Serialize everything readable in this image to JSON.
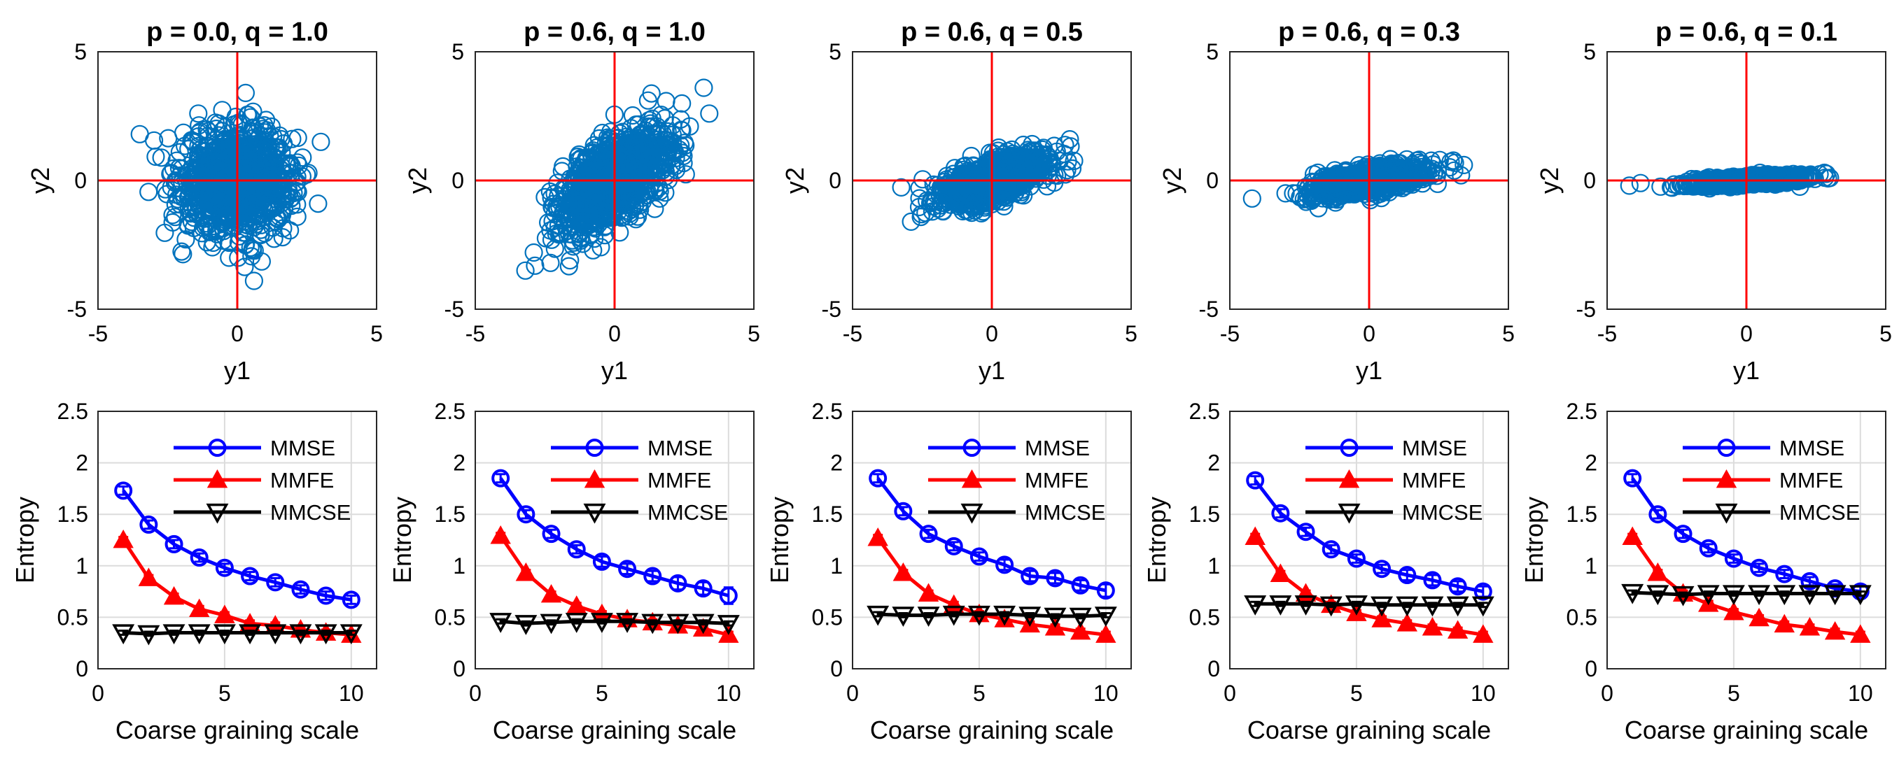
{
  "colors": {
    "mmse": "#0000ff",
    "mmfe": "#ff0000",
    "mmcse": "#000000",
    "scatter": "#0072bd",
    "crosshair": "#ff0000"
  },
  "chart_data": [
    {
      "type": "scatter",
      "title": "p = 0.0, q = 1.0",
      "xlabel": "y1",
      "ylabel": "y2",
      "xlim": [
        -5,
        5
      ],
      "ylim": [
        -5,
        5
      ],
      "xticks": [
        "-5",
        "0",
        "5"
      ],
      "yticks": [
        "-5",
        "0",
        "5"
      ],
      "p": 0.0,
      "q": 1.0,
      "n_points": 1000,
      "crosshair_at": [
        0,
        0
      ],
      "outliers": [
        [
          -3.5,
          1.8
        ],
        [
          0.3,
          3.4
        ],
        [
          0.6,
          -3.9
        ],
        [
          -1.4,
          2.6
        ],
        [
          3.0,
          1.5
        ],
        [
          2.9,
          -0.9
        ]
      ]
    },
    {
      "type": "scatter",
      "title": "p = 0.6, q = 1.0",
      "xlabel": "y1",
      "ylabel": "y2",
      "xlim": [
        -5,
        5
      ],
      "ylim": [
        -5,
        5
      ],
      "xticks": [
        "-5",
        "0",
        "5"
      ],
      "yticks": [
        "-5",
        "0",
        "5"
      ],
      "p": 0.6,
      "q": 1.0,
      "n_points": 1000,
      "crosshair_at": [
        0,
        0
      ],
      "outliers": [
        [
          -3.2,
          -3.5
        ],
        [
          -2.9,
          -2.8
        ],
        [
          -2.3,
          -3.2
        ],
        [
          3.2,
          3.6
        ],
        [
          3.4,
          2.6
        ],
        [
          2.7,
          2.1
        ]
      ]
    },
    {
      "type": "scatter",
      "title": "p = 0.6, q = 0.5",
      "xlabel": "y1",
      "ylabel": "y2",
      "xlim": [
        -5,
        5
      ],
      "ylim": [
        -5,
        5
      ],
      "xticks": [
        "-5",
        "0",
        "5"
      ],
      "yticks": [
        "-5",
        "0",
        "5"
      ],
      "p": 0.6,
      "q": 0.5,
      "n_points": 1000,
      "crosshair_at": [
        0,
        0
      ],
      "outliers": [
        [
          -2.9,
          -1.6
        ],
        [
          -2.6,
          -0.3
        ],
        [
          2.8,
          1.6
        ],
        [
          2.7,
          0.4
        ]
      ]
    },
    {
      "type": "scatter",
      "title": "p = 0.6, q = 0.3",
      "xlabel": "y1",
      "ylabel": "y2",
      "xlim": [
        -5,
        5
      ],
      "ylim": [
        -5,
        5
      ],
      "xticks": [
        "-5",
        "0",
        "5"
      ],
      "yticks": [
        "-5",
        "0",
        "5"
      ],
      "p": 0.6,
      "q": 0.3,
      "n_points": 1000,
      "crosshair_at": [
        0,
        0
      ],
      "outliers": [
        [
          -4.2,
          -0.7
        ],
        [
          3.4,
          0.6
        ],
        [
          3.3,
          0.2
        ],
        [
          -3.0,
          -0.5
        ]
      ]
    },
    {
      "type": "scatter",
      "title": "p = 0.6, q = 0.1",
      "xlabel": "y1",
      "ylabel": "y2",
      "xlim": [
        -5,
        5
      ],
      "ylim": [
        -5,
        5
      ],
      "xticks": [
        "-5",
        "0",
        "5"
      ],
      "yticks": [
        "-5",
        "0",
        "5"
      ],
      "p": 0.6,
      "q": 0.1,
      "n_points": 1000,
      "crosshair_at": [
        0,
        0
      ],
      "outliers": [
        [
          -4.2,
          -0.2
        ],
        [
          -3.8,
          -0.1
        ],
        [
          3.0,
          0.1
        ],
        [
          2.8,
          0.3
        ]
      ]
    },
    {
      "type": "line",
      "xlabel": "Coarse graining scale",
      "ylabel": "Entropy",
      "xlim": [
        0,
        11
      ],
      "ylim": [
        0,
        2.5
      ],
      "xticks": [
        "0",
        "5",
        "10"
      ],
      "yticks": [
        "0",
        "0.5",
        "1",
        "1.5",
        "2",
        "2.5"
      ],
      "grid": true,
      "legend_position": "top-right",
      "x": [
        1,
        2,
        3,
        4,
        5,
        6,
        7,
        8,
        9,
        10
      ],
      "series": [
        {
          "name": "MMSE",
          "values": [
            1.73,
            1.4,
            1.21,
            1.08,
            0.98,
            0.9,
            0.84,
            0.77,
            0.71,
            0.67
          ],
          "error": [
            0.04,
            0.04,
            0.04,
            0.04,
            0.04,
            0.04,
            0.04,
            0.04,
            0.04,
            0.04
          ]
        },
        {
          "name": "MMFE",
          "values": [
            1.25,
            0.88,
            0.7,
            0.58,
            0.52,
            0.44,
            0.42,
            0.38,
            0.35,
            0.33
          ],
          "error": [
            0.03,
            0.03,
            0.03,
            0.03,
            0.03,
            0.03,
            0.03,
            0.03,
            0.03,
            0.03
          ]
        },
        {
          "name": "MMCSE",
          "values": [
            0.35,
            0.34,
            0.35,
            0.35,
            0.35,
            0.35,
            0.35,
            0.35,
            0.35,
            0.35
          ],
          "error": [
            0.02,
            0.02,
            0.02,
            0.02,
            0.02,
            0.02,
            0.02,
            0.02,
            0.02,
            0.02
          ]
        }
      ]
    },
    {
      "type": "line",
      "xlabel": "Coarse graining scale",
      "ylabel": "Entropy",
      "xlim": [
        0,
        11
      ],
      "ylim": [
        0,
        2.5
      ],
      "xticks": [
        "0",
        "5",
        "10"
      ],
      "yticks": [
        "0",
        "0.5",
        "1",
        "1.5",
        "2",
        "2.5"
      ],
      "grid": true,
      "legend_position": "top-right",
      "x": [
        1,
        2,
        3,
        4,
        5,
        6,
        7,
        8,
        9,
        10
      ],
      "series": [
        {
          "name": "MMSE",
          "values": [
            1.85,
            1.5,
            1.31,
            1.16,
            1.04,
            0.97,
            0.9,
            0.83,
            0.78,
            0.71
          ],
          "error": [
            0.04,
            0.04,
            0.04,
            0.04,
            0.05,
            0.05,
            0.05,
            0.06,
            0.06,
            0.08
          ]
        },
        {
          "name": "MMFE",
          "values": [
            1.29,
            0.93,
            0.72,
            0.61,
            0.53,
            0.48,
            0.45,
            0.42,
            0.39,
            0.33
          ],
          "error": [
            0.03,
            0.03,
            0.03,
            0.03,
            0.03,
            0.03,
            0.03,
            0.03,
            0.03,
            0.03
          ]
        },
        {
          "name": "MMCSE",
          "values": [
            0.46,
            0.44,
            0.45,
            0.46,
            0.46,
            0.46,
            0.45,
            0.45,
            0.45,
            0.44
          ],
          "error": [
            0.02,
            0.02,
            0.02,
            0.02,
            0.02,
            0.02,
            0.02,
            0.02,
            0.02,
            0.02
          ]
        }
      ]
    },
    {
      "type": "line",
      "xlabel": "Coarse graining scale",
      "ylabel": "Entropy",
      "xlim": [
        0,
        11
      ],
      "ylim": [
        0,
        2.5
      ],
      "xticks": [
        "0",
        "5",
        "10"
      ],
      "yticks": [
        "0",
        "0.5",
        "1",
        "1.5",
        "2",
        "2.5"
      ],
      "grid": true,
      "legend_position": "top-right",
      "x": [
        1,
        2,
        3,
        4,
        5,
        6,
        7,
        8,
        9,
        10
      ],
      "series": [
        {
          "name": "MMSE",
          "values": [
            1.85,
            1.53,
            1.31,
            1.19,
            1.09,
            1.01,
            0.9,
            0.88,
            0.81,
            0.76
          ],
          "error": [
            0.04,
            0.04,
            0.04,
            0.04,
            0.04,
            0.05,
            0.05,
            0.05,
            0.05,
            0.06
          ]
        },
        {
          "name": "MMFE",
          "values": [
            1.27,
            0.93,
            0.73,
            0.62,
            0.53,
            0.48,
            0.43,
            0.4,
            0.36,
            0.33
          ],
          "error": [
            0.03,
            0.03,
            0.03,
            0.03,
            0.03,
            0.03,
            0.03,
            0.03,
            0.03,
            0.03
          ]
        },
        {
          "name": "MMCSE",
          "values": [
            0.53,
            0.52,
            0.52,
            0.53,
            0.53,
            0.53,
            0.52,
            0.51,
            0.51,
            0.52
          ],
          "error": [
            0.02,
            0.02,
            0.02,
            0.02,
            0.02,
            0.02,
            0.02,
            0.02,
            0.02,
            0.02
          ]
        }
      ]
    },
    {
      "type": "line",
      "xlabel": "Coarse graining scale",
      "ylabel": "Entropy",
      "xlim": [
        0,
        11
      ],
      "ylim": [
        0,
        2.5
      ],
      "xticks": [
        "0",
        "5",
        "10"
      ],
      "yticks": [
        "0",
        "0.5",
        "1",
        "1.5",
        "2",
        "2.5"
      ],
      "grid": true,
      "legend_position": "top-right",
      "x": [
        1,
        2,
        3,
        4,
        5,
        6,
        7,
        8,
        9,
        10
      ],
      "series": [
        {
          "name": "MMSE",
          "values": [
            1.83,
            1.51,
            1.33,
            1.16,
            1.07,
            0.97,
            0.91,
            0.86,
            0.8,
            0.75
          ],
          "error": [
            0.04,
            0.04,
            0.04,
            0.04,
            0.04,
            0.04,
            0.05,
            0.05,
            0.05,
            0.05
          ]
        },
        {
          "name": "MMFE",
          "values": [
            1.28,
            0.92,
            0.73,
            0.62,
            0.54,
            0.48,
            0.44,
            0.4,
            0.37,
            0.33
          ],
          "error": [
            0.03,
            0.03,
            0.03,
            0.03,
            0.03,
            0.03,
            0.03,
            0.03,
            0.03,
            0.03
          ]
        },
        {
          "name": "MMCSE",
          "values": [
            0.63,
            0.63,
            0.63,
            0.62,
            0.63,
            0.62,
            0.62,
            0.62,
            0.62,
            0.62
          ],
          "error": [
            0.02,
            0.02,
            0.02,
            0.02,
            0.02,
            0.02,
            0.02,
            0.02,
            0.02,
            0.02
          ]
        }
      ]
    },
    {
      "type": "line",
      "xlabel": "Coarse graining scale",
      "ylabel": "Entropy",
      "xlim": [
        0,
        11
      ],
      "ylim": [
        0,
        2.5
      ],
      "xticks": [
        "0",
        "5",
        "10"
      ],
      "yticks": [
        "0",
        "0.5",
        "1",
        "1.5",
        "2",
        "2.5"
      ],
      "grid": true,
      "legend_position": "top-right",
      "x": [
        1,
        2,
        3,
        4,
        5,
        6,
        7,
        8,
        9,
        10
      ],
      "series": [
        {
          "name": "MMSE",
          "values": [
            1.85,
            1.5,
            1.31,
            1.17,
            1.07,
            0.98,
            0.92,
            0.85,
            0.78,
            0.75
          ],
          "error": [
            0.04,
            0.04,
            0.04,
            0.04,
            0.04,
            0.04,
            0.04,
            0.04,
            0.04,
            0.05
          ]
        },
        {
          "name": "MMFE",
          "values": [
            1.28,
            0.93,
            0.73,
            0.63,
            0.55,
            0.49,
            0.43,
            0.4,
            0.36,
            0.33
          ],
          "error": [
            0.03,
            0.03,
            0.03,
            0.03,
            0.03,
            0.03,
            0.03,
            0.03,
            0.03,
            0.03
          ]
        },
        {
          "name": "MMCSE",
          "values": [
            0.74,
            0.73,
            0.72,
            0.73,
            0.73,
            0.73,
            0.73,
            0.73,
            0.73,
            0.73
          ],
          "error": [
            0.02,
            0.02,
            0.02,
            0.02,
            0.02,
            0.02,
            0.02,
            0.02,
            0.02,
            0.02
          ]
        }
      ]
    }
  ]
}
